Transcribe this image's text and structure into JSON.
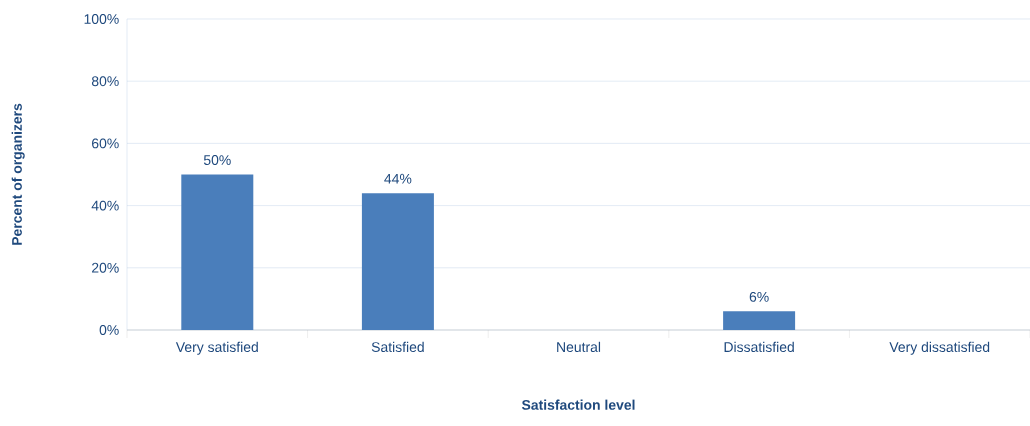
{
  "chart_data": {
    "type": "bar",
    "xlabel": "Satisfaction level",
    "ylabel": "Percent of organizers",
    "categories": [
      "Very satisfied",
      "Satisfied",
      "Neutral",
      "Dissatisfied",
      "Very dissatisfied"
    ],
    "values": [
      50,
      44,
      0,
      6,
      0
    ],
    "value_labels": [
      "50%",
      "44%",
      null,
      "6%",
      null
    ],
    "color": "#4a7ebb",
    "ylim": [
      0,
      100
    ],
    "yticks": [
      {
        "value": 0,
        "label": "0%"
      },
      {
        "value": 20,
        "label": "20%"
      },
      {
        "value": 40,
        "label": "40%"
      },
      {
        "value": 60,
        "label": "60%"
      },
      {
        "value": 80,
        "label": "80%"
      },
      {
        "value": 100,
        "label": "100%"
      }
    ],
    "grid": "y"
  }
}
